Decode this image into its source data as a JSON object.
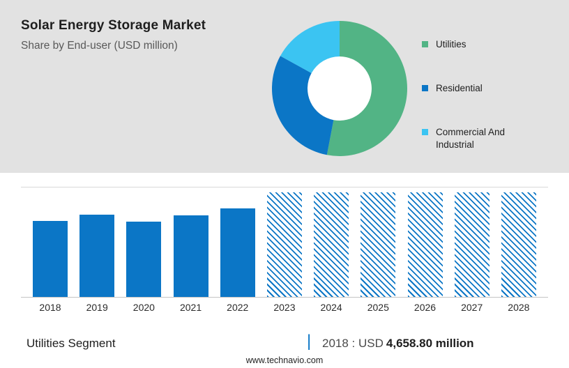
{
  "header": {
    "title": "Solar Energy Storage Market",
    "subtitle": "Share by End-user (USD million)"
  },
  "colors": {
    "panel_bg": "#e2e2e2",
    "bar_blue": "#0b76c6",
    "green": "#52b485",
    "cyan": "#3bc4f2"
  },
  "chart_data": [
    {
      "type": "pie",
      "donut": true,
      "title": "Share by End-user (USD million)",
      "legend_position": "right",
      "segments": [
        {
          "label": "Utilities",
          "value": 53,
          "color": "#52b485"
        },
        {
          "label": "Residential",
          "value": 30,
          "color": "#0b76c6"
        },
        {
          "label": "Commercial And Industrial",
          "value": 17,
          "color": "#3bc4f2"
        }
      ],
      "note": "share values estimated from arc lengths; no numeric labels shown"
    },
    {
      "type": "bar",
      "categories": [
        "2018",
        "2019",
        "2020",
        "2021",
        "2022",
        "2023",
        "2024",
        "2025",
        "2026",
        "2027",
        "2028"
      ],
      "values": [
        4658.8,
        5020,
        4610,
        4975,
        5430,
        6420,
        6420,
        6420,
        6420,
        6420,
        6420
      ],
      "forecast_start_index": 5,
      "bar_color": "#0b76c6",
      "xlabel": "",
      "ylabel": "",
      "ylim": [
        0,
        6700
      ],
      "grid": false,
      "note": "2023-2028 drawn as hatched forecast bars; heights estimated, only 2018 value (4,658.80) labeled on page"
    }
  ],
  "footer": {
    "segment_label": "Utilities Segment",
    "divider": "|",
    "value_prefix": "2018 : USD",
    "value_bold": "4,658.80 million",
    "website": "www.technavio.com"
  }
}
